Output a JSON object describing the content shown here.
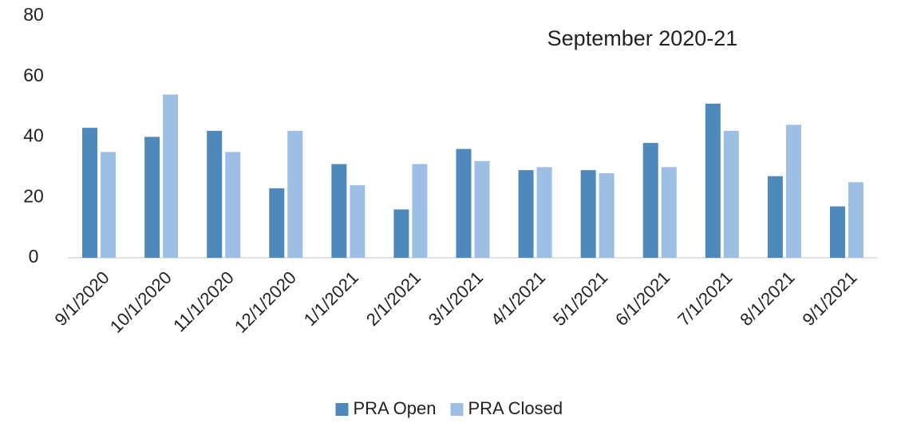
{
  "chart_data": {
    "type": "bar",
    "title": "September 2020-21",
    "categories": [
      "9/1/2020",
      "10/1/2020",
      "11/1/2020",
      "12/1/2020",
      "1/1/2021",
      "2/1/2021",
      "3/1/2021",
      "4/1/2021",
      "5/1/2021",
      "6/1/2021",
      "7/1/2021",
      "8/1/2021",
      "9/1/2021"
    ],
    "series": [
      {
        "name": "PRA Open",
        "color": "#4f88bb",
        "values": [
          43,
          40,
          42,
          23,
          31,
          16,
          36,
          29,
          29,
          38,
          51,
          27,
          17
        ]
      },
      {
        "name": "PRA Closed",
        "color": "#9dbfe3",
        "values": [
          35,
          54,
          35,
          42,
          24,
          31,
          32,
          30,
          28,
          30,
          42,
          44,
          25
        ]
      }
    ],
    "ylim": [
      0,
      80
    ],
    "yticks": [
      0,
      20,
      40,
      60,
      80
    ],
    "grid": false,
    "legend": "bottom"
  }
}
